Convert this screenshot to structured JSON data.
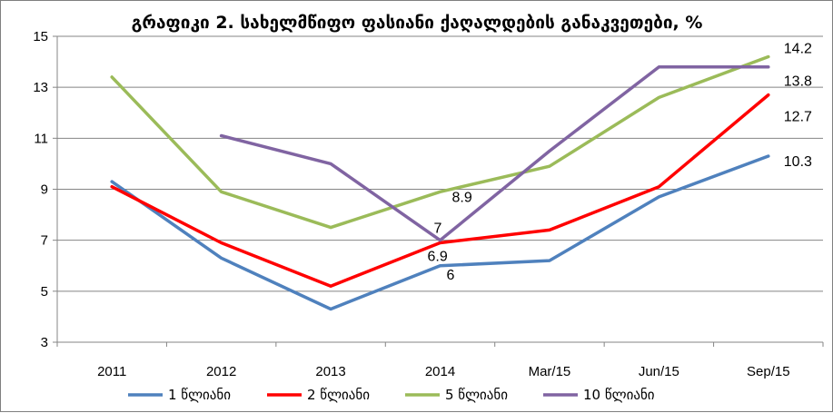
{
  "chart_data": {
    "type": "line",
    "title": "გრაფიკი 2. სახელმწიფო ფასიანი ქაღალდების განაკვეთები, %",
    "xlabel": "",
    "ylabel": "",
    "categories": [
      "2011",
      "2012",
      "2013",
      "2014",
      "Mar/15",
      "Jun/15",
      "Sep/15"
    ],
    "ylim": [
      3,
      15
    ],
    "yticks": [
      3,
      5,
      7,
      9,
      11,
      13,
      15
    ],
    "grid": "horizontal",
    "legend_position": "bottom",
    "series": [
      {
        "name": "1 წლიანი",
        "color": "#4f81bd",
        "values": [
          9.3,
          6.3,
          4.3,
          6.0,
          6.2,
          8.7,
          10.3
        ]
      },
      {
        "name": "2 წლიანი",
        "color": "#ff0000",
        "values": [
          9.1,
          6.9,
          5.2,
          6.9,
          7.4,
          9.1,
          12.7
        ]
      },
      {
        "name": "5 წლიანი",
        "color": "#9bbb59",
        "values": [
          13.4,
          8.9,
          7.5,
          8.9,
          9.9,
          12.6,
          14.2
        ]
      },
      {
        "name": "10 წლიანი",
        "color": "#8064a2",
        "values": [
          null,
          11.1,
          10.0,
          7.0,
          10.5,
          13.8,
          13.8
        ]
      }
    ],
    "annotations": [
      {
        "series": "1 წლიანი",
        "category": "2014",
        "text": "6"
      },
      {
        "series": "2 წლიანი",
        "category": "2014",
        "text": "6.9"
      },
      {
        "series": "10 წლიანი",
        "category": "2014",
        "text": "7"
      },
      {
        "series": "5 წლიანი",
        "category": "2014",
        "text": "8.9"
      },
      {
        "series": "5 წლიანი",
        "category": "Sep/15",
        "text": "14.2"
      },
      {
        "series": "10 წლიანი",
        "category": "Sep/15",
        "text": "13.8"
      },
      {
        "series": "2 წლიანი",
        "category": "Sep/15",
        "text": "12.7"
      },
      {
        "series": "1 წლიანი",
        "category": "Sep/15",
        "text": "10.3"
      }
    ]
  }
}
